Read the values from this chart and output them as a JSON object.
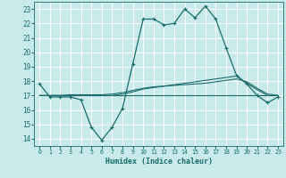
{
  "xlabel": "Humidex (Indice chaleur)",
  "xlim": [
    -0.5,
    23.5
  ],
  "ylim": [
    13.5,
    23.5
  ],
  "yticks": [
    14,
    15,
    16,
    17,
    18,
    19,
    20,
    21,
    22,
    23
  ],
  "xticks": [
    0,
    1,
    2,
    3,
    4,
    5,
    6,
    7,
    8,
    9,
    10,
    11,
    12,
    13,
    14,
    15,
    16,
    17,
    18,
    19,
    20,
    21,
    22,
    23
  ],
  "bg_color": "#c8eaea",
  "line_color": "#1a6b6b",
  "grid_color": "#b0d8d8",
  "line1_x": [
    0,
    1,
    2,
    3,
    4,
    5,
    6,
    7,
    8,
    9,
    10,
    11,
    12,
    13,
    14,
    15,
    16,
    17,
    18,
    19,
    20,
    21,
    22,
    23
  ],
  "line1_y": [
    17.8,
    16.9,
    16.9,
    16.9,
    16.7,
    14.8,
    13.9,
    14.8,
    16.1,
    19.2,
    22.3,
    22.3,
    21.9,
    22.0,
    23.0,
    22.4,
    23.2,
    22.3,
    20.3,
    18.4,
    17.8,
    17.0,
    16.5,
    16.9
  ],
  "line2_x": [
    0,
    1,
    2,
    3,
    4,
    5,
    6,
    7,
    8,
    9,
    10,
    11,
    12,
    13,
    14,
    15,
    16,
    17,
    18,
    19,
    20,
    21,
    22,
    23
  ],
  "line2_y": [
    17.0,
    17.0,
    17.0,
    17.0,
    17.0,
    17.0,
    17.0,
    17.0,
    17.0,
    17.0,
    17.0,
    17.0,
    17.0,
    17.0,
    17.0,
    17.0,
    17.0,
    17.0,
    17.0,
    17.0,
    17.0,
    17.0,
    17.0,
    17.0
  ],
  "line3_x": [
    0,
    1,
    2,
    3,
    4,
    5,
    6,
    7,
    8,
    9,
    10,
    11,
    12,
    13,
    14,
    15,
    16,
    17,
    18,
    19,
    20,
    21,
    22,
    23
  ],
  "line3_y": [
    17.0,
    17.0,
    17.0,
    17.05,
    17.05,
    17.05,
    17.05,
    17.1,
    17.2,
    17.35,
    17.5,
    17.6,
    17.65,
    17.7,
    17.75,
    17.8,
    17.85,
    17.95,
    18.05,
    18.15,
    17.95,
    17.5,
    17.1,
    17.0
  ],
  "line4_x": [
    0,
    1,
    2,
    3,
    4,
    5,
    6,
    7,
    8,
    9,
    10,
    11,
    12,
    13,
    14,
    15,
    16,
    17,
    18,
    19,
    20,
    21,
    22,
    23
  ],
  "line4_y": [
    17.0,
    17.0,
    17.0,
    17.0,
    17.0,
    17.0,
    17.0,
    17.0,
    17.1,
    17.25,
    17.45,
    17.55,
    17.65,
    17.75,
    17.85,
    17.95,
    18.05,
    18.15,
    18.25,
    18.35,
    17.85,
    17.4,
    17.0,
    17.0
  ]
}
